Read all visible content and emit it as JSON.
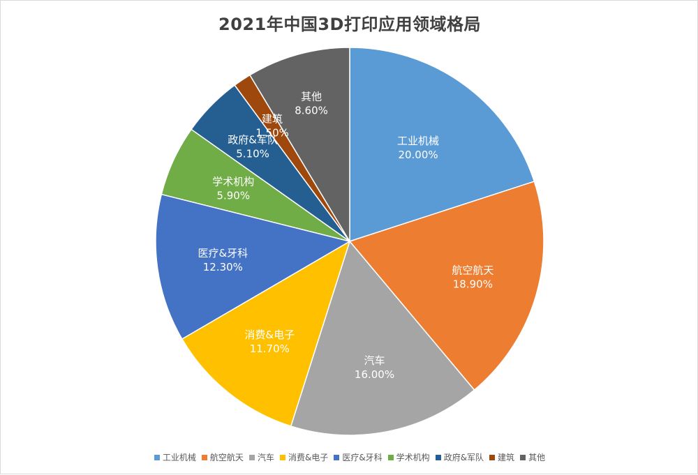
{
  "chart_data": {
    "type": "pie",
    "title": "2021年中国3D打印应用领域格局",
    "unit": "%",
    "legend_position": "bottom",
    "slices": [
      {
        "name": "工业机械",
        "value": 20.0,
        "label": "20.00%",
        "color": "#5B9BD5"
      },
      {
        "name": "航空航天",
        "value": 18.9,
        "label": "18.90%",
        "color": "#ED7D31"
      },
      {
        "name": "汽车",
        "value": 16.0,
        "label": "16.00%",
        "color": "#A5A5A5"
      },
      {
        "name": "消费&电子",
        "value": 11.7,
        "label": "11.70%",
        "color": "#FFC000"
      },
      {
        "name": "医疗&牙科",
        "value": 12.3,
        "label": "12.30%",
        "color": "#4472C4"
      },
      {
        "name": "学术机构",
        "value": 5.9,
        "label": "5.90%",
        "color": "#70AD47"
      },
      {
        "name": "政府&军队",
        "value": 5.1,
        "label": "5.10%",
        "color": "#255E91"
      },
      {
        "name": "建筑",
        "value": 1.5,
        "label": "1.50%",
        "color": "#9E480E"
      },
      {
        "name": "其他",
        "value": 8.6,
        "label": "8.60%",
        "color": "#636363"
      }
    ]
  }
}
